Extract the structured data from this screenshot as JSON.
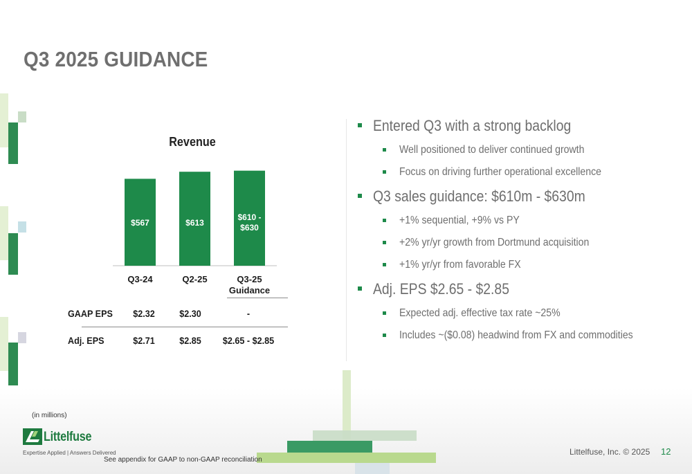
{
  "slide": {
    "title": "Q3 2025 GUIDANCE",
    "units_note": "(in millions)",
    "footnote": "See appendix for GAAP to non-GAAP reconciliation",
    "copyright": "Littelfuse, Inc. © 2025",
    "page_number": "12"
  },
  "logo": {
    "name": "Littelfuse",
    "tagline": "Expertise Applied | Answers Delivered"
  },
  "colors": {
    "bar": "#1e8a4a",
    "accent_green": "#1e8a4a",
    "light_green": "#b9d98e",
    "title_gray": "#6f6f6f"
  },
  "chart_data": {
    "type": "bar",
    "title": "Revenue",
    "categories": [
      "Q3-24",
      "Q2-25",
      "Q3-25 Guidance"
    ],
    "values": [
      567,
      613,
      620
    ],
    "data_labels": [
      "$567",
      "$613",
      "$610 - $630"
    ],
    "ylim": [
      0,
      650
    ],
    "grid": false,
    "legend": "none"
  },
  "eps_table": {
    "rows": [
      {
        "label": "GAAP EPS",
        "values": [
          "$2.32",
          "$2.30",
          "-"
        ]
      },
      {
        "label": "Adj. EPS",
        "values": [
          "$2.71",
          "$2.85",
          "$2.65 - $2.85"
        ]
      }
    ]
  },
  "bullets": [
    {
      "text": "Entered Q3 with a strong backlog",
      "sub": [
        "Well positioned to deliver continued growth",
        "Focus on driving further operational excellence"
      ]
    },
    {
      "text": "Q3 sales guidance: $610m - $630m",
      "sub": [
        "+1% sequential, +9% vs PY",
        "+2% yr/yr growth from Dortmund acquisition",
        "+1% yr/yr from favorable FX"
      ]
    },
    {
      "text": "Adj. EPS $2.65 - $2.85",
      "sub": [
        "Expected adj. effective tax rate ~25%",
        "Includes ~($0.08) headwind from FX and commodities"
      ]
    }
  ]
}
